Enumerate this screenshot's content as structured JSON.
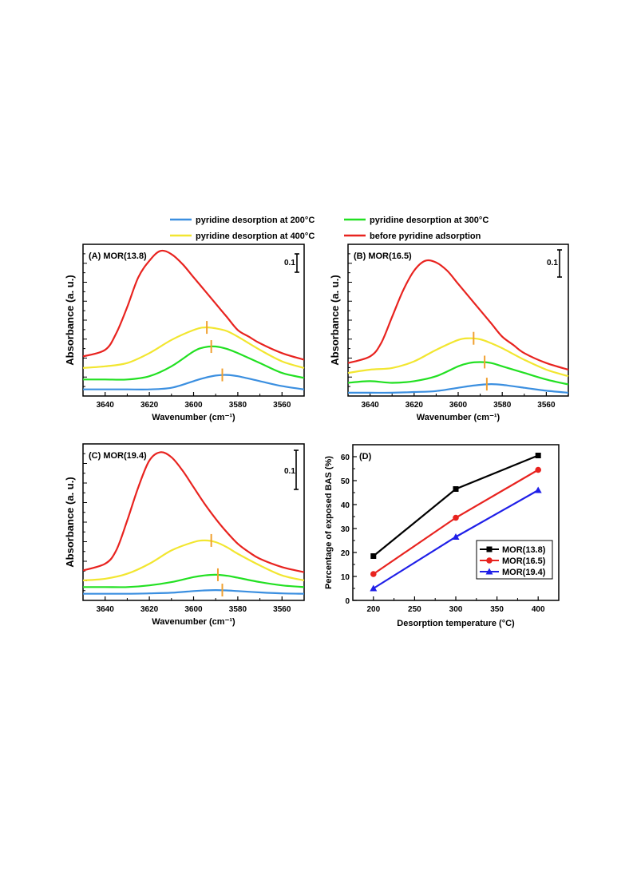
{
  "legend": [
    {
      "label": "pyridine desorption at 200°C",
      "color": "#3b8fe0"
    },
    {
      "label": "pyridine desorption at 300°C",
      "color": "#22e022"
    },
    {
      "label": "pyridine desorption at 400°C",
      "color": "#f2e630"
    },
    {
      "label": "before pyridine adsorption",
      "color": "#e8231f"
    }
  ],
  "scale_bar_label": "0.1",
  "chart_data": [
    {
      "type": "line",
      "title": "(A) MOR(13.8)",
      "xlabel": "Wavenumber (cm⁻¹)",
      "ylabel": "Absorbance (a. u.)",
      "xlim": [
        3650,
        3550
      ],
      "xticks": [
        "3640",
        "3620",
        "3600",
        "3580",
        "3560"
      ],
      "series": [
        {
          "name": "pyridine desorption at 200°C",
          "color": "#3b8fe0",
          "x": [
            3650,
            3640,
            3630,
            3620,
            3610,
            3600,
            3595,
            3590,
            3585,
            3580,
            3570,
            3560,
            3550
          ],
          "y": [
            0.02,
            0.02,
            0.02,
            0.02,
            0.025,
            0.045,
            0.055,
            0.062,
            0.064,
            0.06,
            0.045,
            0.03,
            0.02
          ]
        },
        {
          "name": "pyridine desorption at 300°C",
          "color": "#22e022",
          "x": [
            3650,
            3640,
            3630,
            3620,
            3610,
            3600,
            3595,
            3590,
            3585,
            3580,
            3570,
            3560,
            3550
          ],
          "y": [
            0.05,
            0.05,
            0.05,
            0.06,
            0.09,
            0.135,
            0.148,
            0.15,
            0.143,
            0.13,
            0.1,
            0.07,
            0.055
          ]
        },
        {
          "name": "pyridine desorption at 400°C",
          "color": "#f2e630",
          "x": [
            3650,
            3640,
            3630,
            3620,
            3610,
            3600,
            3595,
            3590,
            3585,
            3580,
            3570,
            3560,
            3550
          ],
          "y": [
            0.085,
            0.09,
            0.1,
            0.13,
            0.17,
            0.2,
            0.208,
            0.205,
            0.197,
            0.18,
            0.14,
            0.105,
            0.085
          ]
        },
        {
          "name": "before pyridine adsorption",
          "color": "#e8231f",
          "x": [
            3650,
            3640,
            3635,
            3630,
            3625,
            3620,
            3615,
            3610,
            3605,
            3600,
            3595,
            3590,
            3585,
            3580,
            3575,
            3570,
            3560,
            3550
          ],
          "y": [
            0.12,
            0.14,
            0.19,
            0.27,
            0.36,
            0.41,
            0.44,
            0.43,
            0.4,
            0.36,
            0.32,
            0.28,
            0.24,
            0.2,
            0.18,
            0.16,
            0.13,
            0.11
          ]
        }
      ],
      "peak_markers": [
        {
          "x": 3594,
          "y": 0.208
        },
        {
          "x": 3592,
          "y": 0.15
        },
        {
          "x": 3587,
          "y": 0.064
        }
      ]
    },
    {
      "type": "line",
      "title": "(B) MOR(16.5)",
      "xlabel": "Wavenumber (cm⁻¹)",
      "ylabel": "Absorbance (a. u.)",
      "xlim": [
        3650,
        3550
      ],
      "xticks": [
        "3640",
        "3620",
        "3600",
        "3580",
        "3560"
      ],
      "series": [
        {
          "name": "pyridine desorption at 200°C",
          "color": "#3b8fe0",
          "x": [
            3650,
            3640,
            3630,
            3620,
            3610,
            3600,
            3595,
            3590,
            3585,
            3580,
            3570,
            3560,
            3550
          ],
          "y": [
            0.01,
            0.01,
            0.01,
            0.012,
            0.015,
            0.025,
            0.03,
            0.034,
            0.036,
            0.034,
            0.025,
            0.016,
            0.01
          ]
        },
        {
          "name": "pyridine desorption at 300°C",
          "color": "#22e022",
          "x": [
            3650,
            3640,
            3630,
            3620,
            3610,
            3600,
            3595,
            3590,
            3585,
            3580,
            3570,
            3560,
            3550
          ],
          "y": [
            0.04,
            0.045,
            0.04,
            0.045,
            0.06,
            0.09,
            0.1,
            0.103,
            0.1,
            0.09,
            0.07,
            0.05,
            0.035
          ]
        },
        {
          "name": "pyridine desorption at 400°C",
          "color": "#f2e630",
          "x": [
            3650,
            3640,
            3630,
            3620,
            3610,
            3600,
            3595,
            3590,
            3585,
            3580,
            3570,
            3560,
            3550
          ],
          "y": [
            0.07,
            0.08,
            0.085,
            0.105,
            0.14,
            0.17,
            0.175,
            0.172,
            0.16,
            0.145,
            0.11,
            0.08,
            0.06
          ]
        },
        {
          "name": "before pyridine adsorption",
          "color": "#e8231f",
          "x": [
            3650,
            3640,
            3635,
            3630,
            3625,
            3620,
            3615,
            3610,
            3605,
            3600,
            3595,
            3590,
            3585,
            3580,
            3575,
            3570,
            3560,
            3550
          ],
          "y": [
            0.1,
            0.12,
            0.16,
            0.24,
            0.32,
            0.38,
            0.41,
            0.405,
            0.38,
            0.34,
            0.3,
            0.26,
            0.22,
            0.18,
            0.155,
            0.13,
            0.1,
            0.08
          ]
        }
      ],
      "peak_markers": [
        {
          "x": 3593,
          "y": 0.175
        },
        {
          "x": 3588,
          "y": 0.103
        },
        {
          "x": 3587,
          "y": 0.036
        }
      ]
    },
    {
      "type": "line",
      "title": "(C) MOR(19.4)",
      "xlabel": "Wavenumber (cm⁻¹)",
      "ylabel": "Absorbance (a. u.)",
      "xlim": [
        3650,
        3550
      ],
      "xticks": [
        "3640",
        "3620",
        "3600",
        "3580",
        "3560"
      ],
      "series": [
        {
          "name": "pyridine desorption at 200°C",
          "color": "#3b8fe0",
          "x": [
            3650,
            3640,
            3630,
            3620,
            3610,
            3600,
            3595,
            3590,
            3585,
            3580,
            3570,
            3560,
            3550
          ],
          "y": [
            0.02,
            0.02,
            0.02,
            0.021,
            0.023,
            0.028,
            0.03,
            0.031,
            0.03,
            0.028,
            0.024,
            0.021,
            0.02
          ]
        },
        {
          "name": "pyridine desorption at 300°C",
          "color": "#22e022",
          "x": [
            3650,
            3640,
            3630,
            3620,
            3610,
            3600,
            3595,
            3590,
            3585,
            3580,
            3570,
            3560,
            3550
          ],
          "y": [
            0.04,
            0.04,
            0.04,
            0.045,
            0.055,
            0.07,
            0.075,
            0.077,
            0.074,
            0.068,
            0.055,
            0.045,
            0.04
          ]
        },
        {
          "name": "pyridine desorption at 400°C",
          "color": "#f2e630",
          "x": [
            3650,
            3640,
            3630,
            3620,
            3610,
            3600,
            3595,
            3590,
            3585,
            3580,
            3570,
            3560,
            3550
          ],
          "y": [
            0.06,
            0.065,
            0.08,
            0.11,
            0.15,
            0.175,
            0.18,
            0.175,
            0.16,
            0.14,
            0.105,
            0.075,
            0.06
          ]
        },
        {
          "name": "before pyridine adsorption",
          "color": "#e8231f",
          "x": [
            3650,
            3640,
            3635,
            3630,
            3625,
            3620,
            3615,
            3610,
            3605,
            3600,
            3595,
            3590,
            3585,
            3580,
            3575,
            3570,
            3560,
            3550
          ],
          "y": [
            0.09,
            0.11,
            0.15,
            0.24,
            0.34,
            0.42,
            0.445,
            0.43,
            0.39,
            0.34,
            0.29,
            0.245,
            0.205,
            0.17,
            0.145,
            0.125,
            0.1,
            0.085
          ]
        }
      ],
      "peak_markers": [
        {
          "x": 3592,
          "y": 0.18
        },
        {
          "x": 3589,
          "y": 0.077
        },
        {
          "x": 3587,
          "y": 0.031
        }
      ]
    },
    {
      "type": "line",
      "title": "(D)",
      "xlabel": "Desorption temperature (°C)",
      "ylabel": "Percentage of exposed BAS (%)",
      "xlim": [
        175,
        425
      ],
      "ylim": [
        0,
        65
      ],
      "xticks": [
        200,
        250,
        300,
        350,
        400
      ],
      "yticks": [
        0,
        10,
        20,
        30,
        40,
        50,
        60
      ],
      "legend_position": "bottom-right",
      "series": [
        {
          "name": "MOR(13.8)",
          "color": "#000000",
          "marker": "square",
          "x": [
            200,
            300,
            400
          ],
          "y": [
            18.5,
            46.5,
            60.5
          ]
        },
        {
          "name": "MOR(16.5)",
          "color": "#e8231f",
          "marker": "circle",
          "x": [
            200,
            300,
            400
          ],
          "y": [
            11,
            34.5,
            54.5
          ]
        },
        {
          "name": "MOR(19.4)",
          "color": "#1f1fe8",
          "marker": "triangle",
          "x": [
            200,
            300,
            400
          ],
          "y": [
            5,
            26.5,
            46
          ]
        }
      ]
    }
  ]
}
